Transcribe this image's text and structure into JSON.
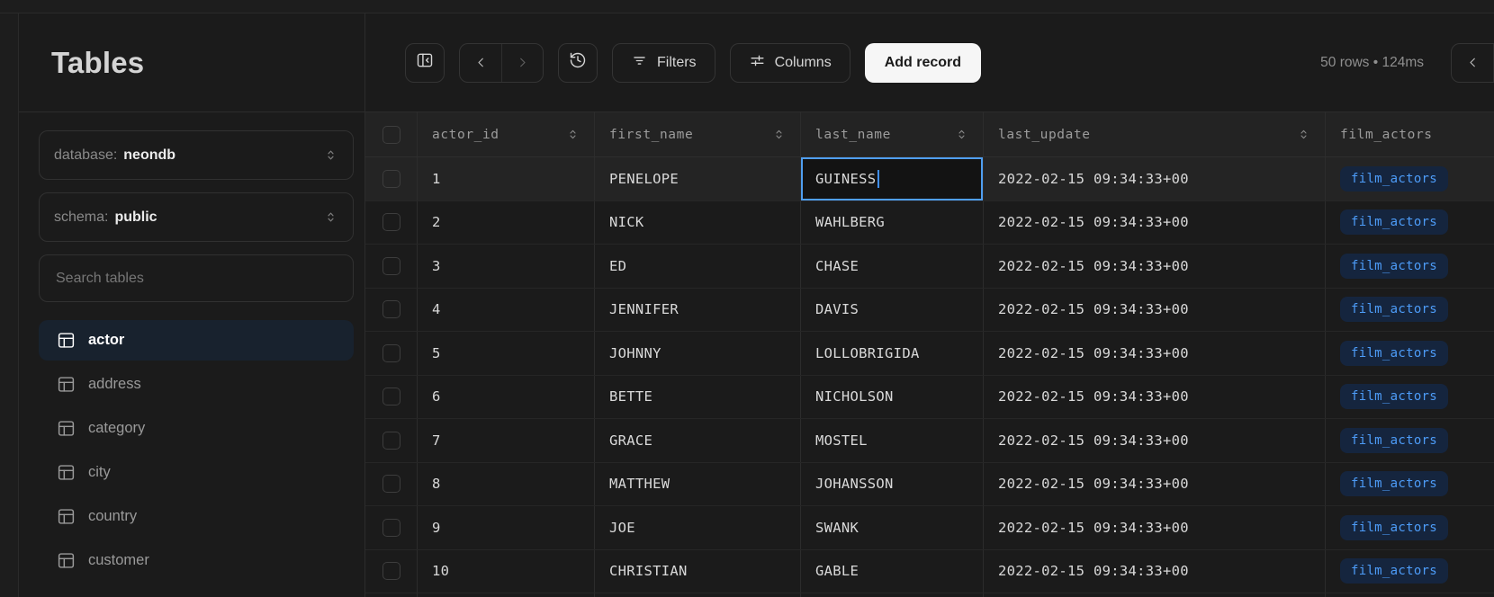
{
  "app": {
    "title": "Tables"
  },
  "sidebar": {
    "database_select": {
      "label": "database:",
      "value": "neondb"
    },
    "schema_select": {
      "label": "schema:",
      "value": "public"
    },
    "search_placeholder": "Search tables",
    "tables": [
      {
        "name": "actor",
        "selected": true
      },
      {
        "name": "address",
        "selected": false
      },
      {
        "name": "category",
        "selected": false
      },
      {
        "name": "city",
        "selected": false
      },
      {
        "name": "country",
        "selected": false
      },
      {
        "name": "customer",
        "selected": false
      }
    ]
  },
  "toolbar": {
    "collapse_button_icon": "collapse-panel-icon",
    "pagination": {
      "prev_enabled": true,
      "next_enabled": false
    },
    "history_button_icon": "history-icon",
    "filters_label": "Filters",
    "columns_label": "Columns",
    "add_record_label": "Add record",
    "status": "50 rows • 124ms"
  },
  "grid": {
    "columns": [
      {
        "key": "select",
        "type": "checkbox"
      },
      {
        "key": "actor_id",
        "label": "actor_id",
        "sortable": true
      },
      {
        "key": "first_name",
        "label": "first_name",
        "sortable": true
      },
      {
        "key": "last_name",
        "label": "last_name",
        "sortable": true
      },
      {
        "key": "last_update",
        "label": "last_update",
        "sortable": true
      },
      {
        "key": "film_actors",
        "label": "film_actors",
        "sortable": false,
        "type": "link"
      }
    ],
    "rows": [
      {
        "actor_id": "1",
        "first_name": "PENELOPE",
        "last_name": "GUINESS",
        "last_update": "2022-02-15 09:34:33+00",
        "film_actors": "film_actors"
      },
      {
        "actor_id": "2",
        "first_name": "NICK",
        "last_name": "WAHLBERG",
        "last_update": "2022-02-15 09:34:33+00",
        "film_actors": "film_actors"
      },
      {
        "actor_id": "3",
        "first_name": "ED",
        "last_name": "CHASE",
        "last_update": "2022-02-15 09:34:33+00",
        "film_actors": "film_actors"
      },
      {
        "actor_id": "4",
        "first_name": "JENNIFER",
        "last_name": "DAVIS",
        "last_update": "2022-02-15 09:34:33+00",
        "film_actors": "film_actors"
      },
      {
        "actor_id": "5",
        "first_name": "JOHNNY",
        "last_name": "LOLLOBRIGIDA",
        "last_update": "2022-02-15 09:34:33+00",
        "film_actors": "film_actors"
      },
      {
        "actor_id": "6",
        "first_name": "BETTE",
        "last_name": "NICHOLSON",
        "last_update": "2022-02-15 09:34:33+00",
        "film_actors": "film_actors"
      },
      {
        "actor_id": "7",
        "first_name": "GRACE",
        "last_name": "MOSTEL",
        "last_update": "2022-02-15 09:34:33+00",
        "film_actors": "film_actors"
      },
      {
        "actor_id": "8",
        "first_name": "MATTHEW",
        "last_name": "JOHANSSON",
        "last_update": "2022-02-15 09:34:33+00",
        "film_actors": "film_actors"
      },
      {
        "actor_id": "9",
        "first_name": "JOE",
        "last_name": "SWANK",
        "last_update": "2022-02-15 09:34:33+00",
        "film_actors": "film_actors"
      },
      {
        "actor_id": "10",
        "first_name": "CHRISTIAN",
        "last_name": "GABLE",
        "last_update": "2022-02-15 09:34:33+00",
        "film_actors": "film_actors"
      }
    ],
    "active_row_index": 0,
    "editing": {
      "row_index": 0,
      "column": "last_name",
      "value": "GUINESS"
    }
  },
  "colors": {
    "accent_blue": "#4f9ef0",
    "caret_blue": "#3f8ef7",
    "link_pill_text": "#4d9cf8",
    "link_pill_bg": "#15253e",
    "selected_item_bg": "#18222e",
    "primary_button_bg": "#f6f6f6",
    "primary_button_text": "#1a1a1a",
    "panel_bg": "#1b1b1b",
    "header_row_bg": "#232323"
  }
}
